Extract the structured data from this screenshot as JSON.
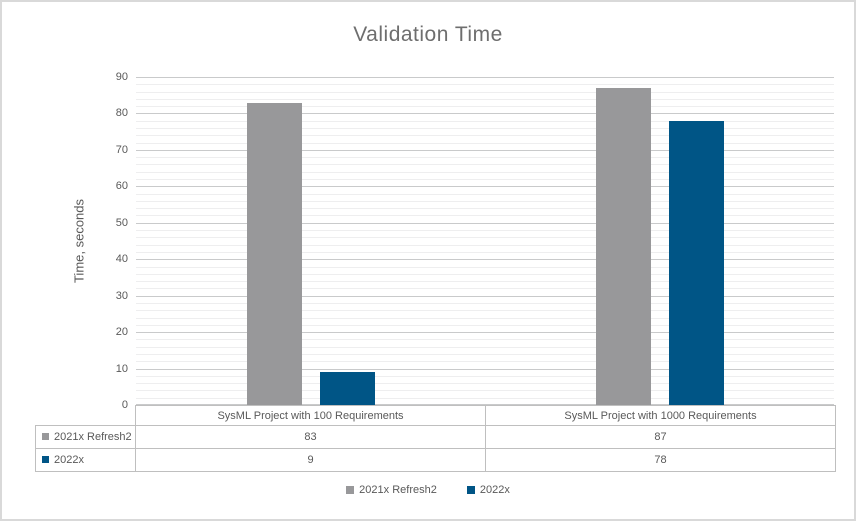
{
  "chart_data": {
    "type": "bar",
    "title": "Validation Time",
    "categories": [
      "SysML Project with 100 Requirements",
      "SysML Project with 1000 Requirements"
    ],
    "series": [
      {
        "name": "2021x Refresh2",
        "color": "#98989A",
        "values": [
          83,
          87
        ]
      },
      {
        "name": "2022x",
        "color": "#005586",
        "values": [
          9,
          78
        ]
      }
    ],
    "xlabel": "",
    "ylabel": "Time, seconds",
    "ylim": [
      0,
      90
    ],
    "yticks": [
      0,
      10,
      20,
      30,
      40,
      50,
      60,
      70,
      80,
      90
    ],
    "y_minor_unit": 2,
    "grid": true,
    "legend_position": "bottom",
    "show_data_table": true
  },
  "colors": {
    "major_gridline": "#C9CACB",
    "minor_gridline": "#EEEEEF",
    "table_border": "#BFBFBF",
    "frame_border": "#D9D9D9",
    "text": "#595959",
    "title_text": "#6E6E6E"
  }
}
